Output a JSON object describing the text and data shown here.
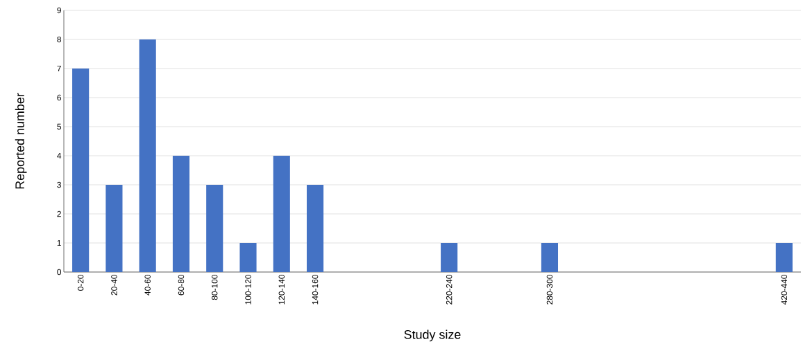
{
  "chart_data": {
    "type": "bar",
    "xlabel": "Study size",
    "ylabel": "Reported number",
    "categories": [
      "0-20",
      "20-40",
      "40-60",
      "60-80",
      "80-100",
      "100-120",
      "120-140",
      "140-160",
      null,
      null,
      null,
      "220-240",
      null,
      null,
      "280-300",
      null,
      null,
      null,
      null,
      null,
      null,
      "420-440"
    ],
    "values": [
      7,
      3,
      8,
      4,
      3,
      1,
      4,
      3,
      0,
      0,
      0,
      1,
      0,
      0,
      1,
      0,
      0,
      0,
      0,
      0,
      0,
      1
    ],
    "color": "#4472c4",
    "ylim": [
      0,
      9
    ],
    "yticks": [
      0,
      1,
      2,
      3,
      4,
      5,
      6,
      7,
      8,
      9
    ],
    "grid": "y"
  }
}
